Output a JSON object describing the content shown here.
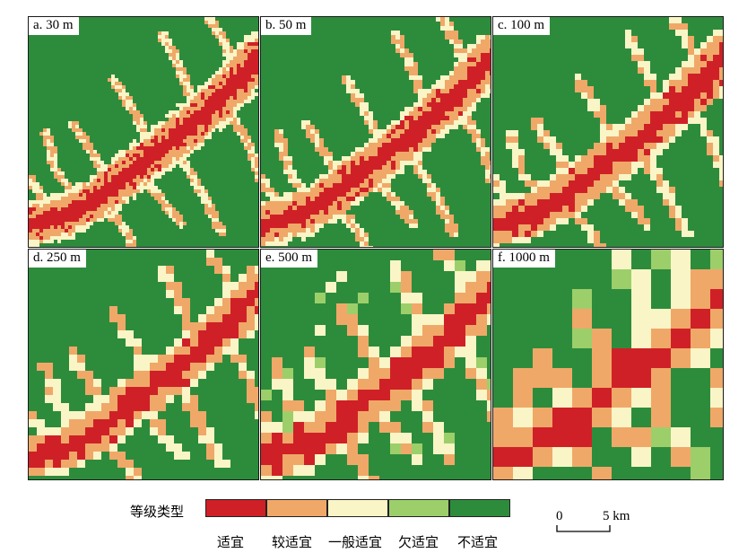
{
  "panels": [
    {
      "label": "a. 30 m"
    },
    {
      "label": "b. 50 m"
    },
    {
      "label": "c. 100 m"
    },
    {
      "label": "d. 250 m"
    },
    {
      "label": "e. 500 m"
    },
    {
      "label": "f. 1000 m"
    }
  ],
  "legend": {
    "title": "等级类型",
    "classes": [
      {
        "label": "适宜",
        "color": "#cf2027"
      },
      {
        "label": "较适宜",
        "color": "#f0a868"
      },
      {
        "label": "一般适宜",
        "color": "#faf5c6"
      },
      {
        "label": "欠适宜",
        "color": "#9ccf6a"
      },
      {
        "label": "不适宜",
        "color": "#2d8c3c"
      }
    ]
  },
  "scale_bar": {
    "start": "0",
    "end": "5 km"
  }
}
